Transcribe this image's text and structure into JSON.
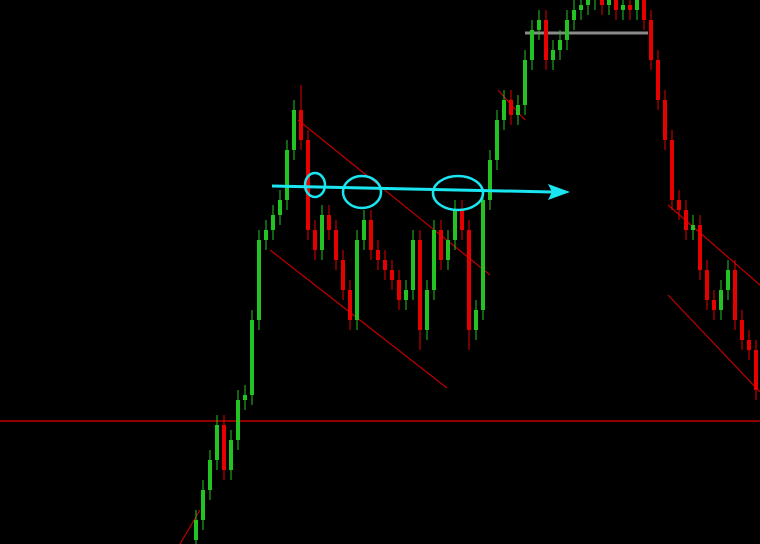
{
  "chart_data": {
    "type": "candlestick",
    "ylim": [
      0,
      544
    ],
    "up_color": "#22c322",
    "down_color": "#e60000",
    "open": [
      4,
      24,
      54,
      84,
      119,
      74,
      104,
      144,
      149,
      224,
      304,
      314,
      329,
      344,
      394,
      434,
      404,
      314,
      294,
      329,
      314,
      284,
      254,
      224,
      304,
      324,
      294,
      284,
      274,
      264,
      244,
      254,
      304,
      214,
      254,
      314,
      284,
      304,
      334,
      314,
      214,
      234,
      344,
      384,
      424,
      444,
      429,
      439,
      484,
      514,
      524,
      484,
      494,
      504,
      524,
      534,
      539,
      544,
      554,
      539,
      549,
      534,
      539,
      534,
      544,
      524,
      484,
      444,
      404,
      344,
      334,
      314,
      319,
      274,
      244,
      234,
      254,
      274,
      224,
      204,
      194
    ],
    "high": [
      34,
      64,
      94,
      129,
      129,
      114,
      154,
      159,
      234,
      314,
      324,
      339,
      354,
      404,
      444,
      459,
      414,
      324,
      339,
      339,
      324,
      294,
      264,
      314,
      334,
      334,
      304,
      294,
      284,
      274,
      264,
      314,
      314,
      264,
      324,
      324,
      314,
      344,
      344,
      324,
      244,
      354,
      394,
      434,
      454,
      454,
      449,
      494,
      524,
      534,
      534,
      504,
      514,
      534,
      544,
      549,
      554,
      564,
      564,
      559,
      559,
      549,
      549,
      554,
      554,
      534,
      494,
      454,
      414,
      354,
      344,
      329,
      329,
      284,
      254,
      264,
      284,
      284,
      234,
      214,
      204
    ],
    "low": [
      -6,
      14,
      44,
      74,
      64,
      64,
      94,
      134,
      139,
      214,
      294,
      304,
      319,
      334,
      384,
      394,
      304,
      284,
      284,
      304,
      274,
      244,
      214,
      214,
      294,
      284,
      274,
      264,
      254,
      234,
      234,
      244,
      194,
      204,
      244,
      274,
      274,
      294,
      304,
      194,
      204,
      224,
      334,
      374,
      414,
      419,
      419,
      429,
      474,
      504,
      474,
      474,
      484,
      494,
      514,
      524,
      529,
      534,
      529,
      529,
      524,
      524,
      524,
      524,
      514,
      474,
      434,
      394,
      334,
      324,
      304,
      304,
      264,
      234,
      224,
      224,
      244,
      214,
      194,
      184,
      144
    ],
    "close": [
      24,
      54,
      84,
      119,
      74,
      104,
      144,
      149,
      224,
      304,
      314,
      329,
      344,
      394,
      434,
      404,
      314,
      294,
      329,
      314,
      284,
      254,
      224,
      304,
      324,
      294,
      284,
      274,
      264,
      244,
      254,
      304,
      214,
      254,
      314,
      284,
      304,
      334,
      314,
      214,
      234,
      344,
      384,
      424,
      444,
      429,
      439,
      484,
      514,
      524,
      484,
      494,
      504,
      524,
      534,
      539,
      544,
      554,
      539,
      549,
      534,
      539,
      534,
      544,
      524,
      484,
      444,
      404,
      344,
      334,
      314,
      319,
      274,
      244,
      234,
      254,
      274,
      224,
      204,
      194,
      154
    ]
  }
}
